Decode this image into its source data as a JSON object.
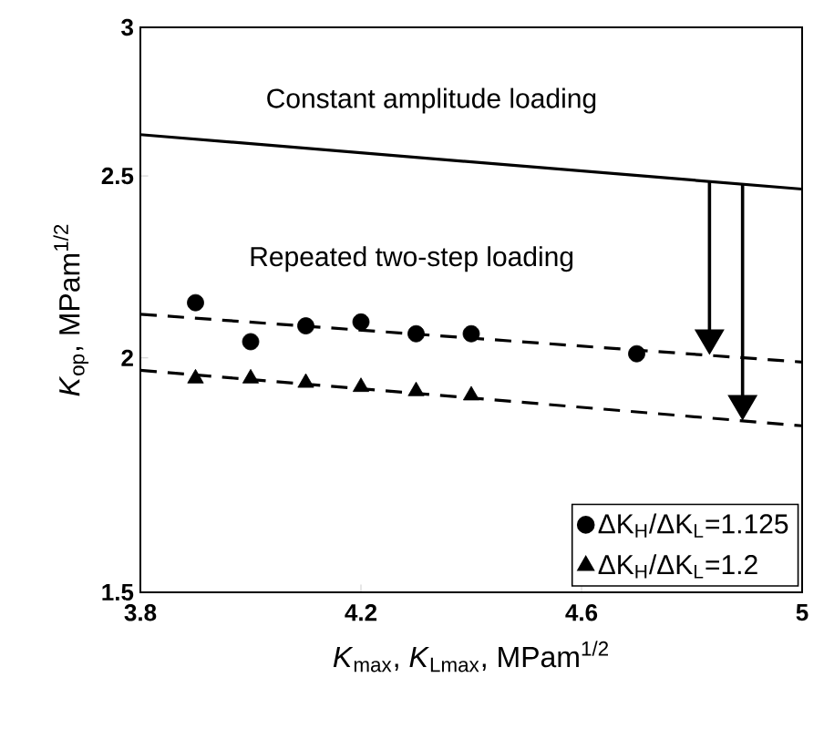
{
  "chart_data": {
    "type": "scatter",
    "xlabel": "*K*$_{max}$, *K*$_{Lmax}$,   MPam$^{1/2}$",
    "ylabel": "*K*$_{op}$,  MPam$^{1/2}$",
    "log": "y",
    "xlim": [
      3.8,
      5
    ],
    "xticks": [
      3.8,
      4.2,
      4.6,
      5
    ],
    "ylim": [
      1.5,
      3
    ],
    "yticks": [
      1.5,
      2,
      2.5,
      3
    ],
    "legend": "bottom right",
    "annotations": [
      "Constant amplitude loading",
      "Repeated two-step loading"
    ],
    "series": [
      {
        "type": "line",
        "color": "#000000",
        "line_style": "solid",
        "marker": "none",
        "x": [
          3.8,
          5
        ],
        "values": [
          2.63,
          2.46
        ]
      },
      {
        "type": "line",
        "color": "#000000",
        "line_style": "dashed",
        "marker": "none",
        "x": [
          3.8,
          5
        ],
        "values": [
          2.11,
          1.99
        ]
      },
      {
        "type": "line",
        "color": "#000000",
        "line_style": "dashed",
        "marker": "none",
        "x": [
          3.8,
          5
        ],
        "values": [
          1.97,
          1.84
        ]
      },
      {
        "name": "ΔK$_{H}$/ΔK$_{L}$=1.125",
        "color": "#000000",
        "marker": "circle",
        "x": [
          3.9,
          4.0,
          4.1,
          4.2,
          4.3,
          4.4,
          4.7
        ],
        "values": [
          2.14,
          2.04,
          2.08,
          2.09,
          2.06,
          2.06,
          2.01
        ]
      },
      {
        "name": "ΔK$_{H}$/ΔK$_{L}$=1.2",
        "color": "#000000",
        "marker": "triangle",
        "x": [
          3.9,
          4.0,
          4.1,
          4.2,
          4.3,
          4.4
        ],
        "values": [
          1.95,
          1.95,
          1.94,
          1.93,
          1.92,
          1.91
        ]
      }
    ]
  }
}
